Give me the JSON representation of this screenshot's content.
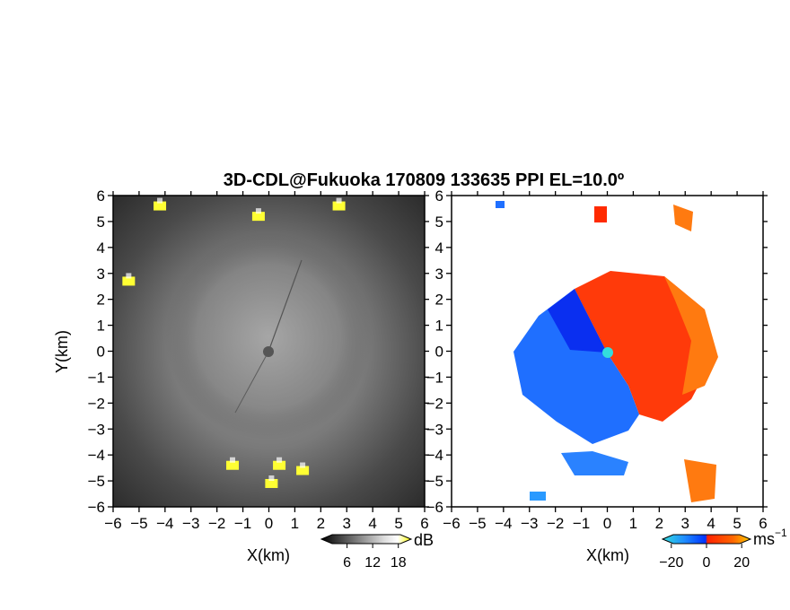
{
  "title": "3D-CDL@Fukuoka 170809 133635 PPI EL=10.0º",
  "colors": {
    "echo_highlight": "#ffff33",
    "cyan": "#33dddd",
    "approaching_blue": "#0066ff",
    "receding_red": "#ff3300"
  },
  "chart_data": [
    {
      "type": "heatmap",
      "name": "SNR PPI",
      "x_range": [
        -6,
        6
      ],
      "y_range": [
        -6,
        6
      ],
      "x_ticks": [
        -6,
        -5,
        -4,
        -3,
        -2,
        -1,
        0,
        1,
        2,
        3,
        4,
        5,
        6
      ],
      "y_ticks": [
        -6,
        -5,
        -4,
        -3,
        -2,
        -1,
        0,
        1,
        2,
        3,
        4,
        5,
        6
      ],
      "xlabel": "X(km)",
      "ylabel": "Y(km)",
      "colorbar": {
        "unit": "dB",
        "ticks": [
          6,
          12,
          18
        ],
        "range": [
          0,
          21
        ],
        "colormap": "grayscale-to-yellow"
      },
      "strong_echoes_km": [
        [
          -4.2,
          5.6
        ],
        [
          -0.4,
          5.2
        ],
        [
          2.7,
          5.6
        ],
        [
          -5.4,
          2.7
        ],
        [
          -1.4,
          -4.4
        ],
        [
          0.4,
          -4.4
        ],
        [
          0.1,
          -5.1
        ],
        [
          1.3,
          -4.6
        ]
      ]
    },
    {
      "type": "heatmap",
      "name": "Doppler velocity PPI",
      "x_range": [
        -6,
        6
      ],
      "y_range": [
        -6,
        6
      ],
      "x_ticks": [
        -6,
        -5,
        -4,
        -3,
        -2,
        -1,
        0,
        1,
        2,
        3,
        4,
        5,
        6
      ],
      "y_ticks": [
        -6,
        -5,
        -4,
        -3,
        -2,
        -1,
        0,
        1,
        2,
        3,
        4,
        5,
        6
      ],
      "xlabel": "X(km)",
      "ylabel": "",
      "colorbar": {
        "unit": "ms",
        "unit_exponent": "−1",
        "ticks": [
          "−20",
          "0",
          "20"
        ],
        "range": [
          -25,
          25
        ],
        "colormap": "cyan-blue-red-orange"
      }
    }
  ]
}
